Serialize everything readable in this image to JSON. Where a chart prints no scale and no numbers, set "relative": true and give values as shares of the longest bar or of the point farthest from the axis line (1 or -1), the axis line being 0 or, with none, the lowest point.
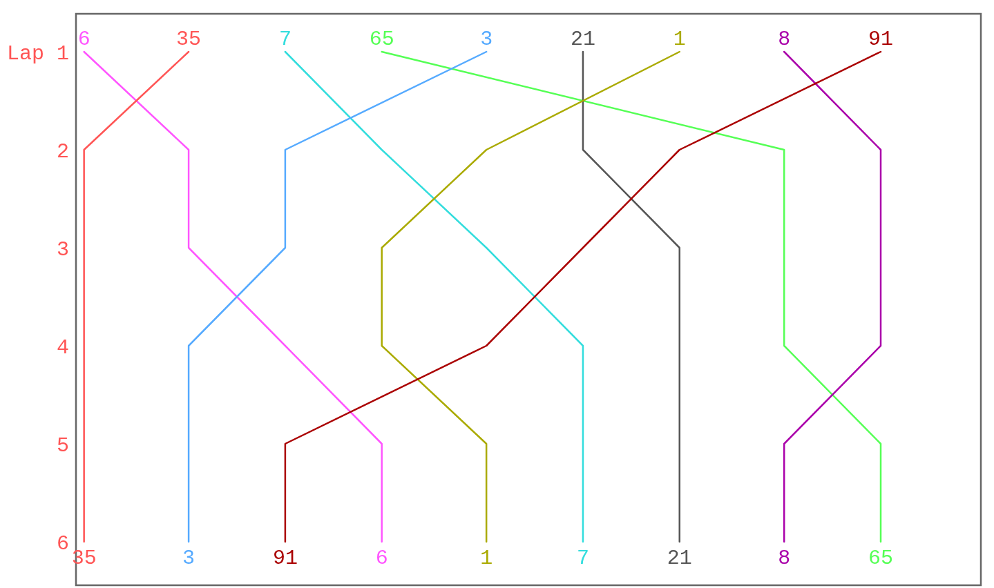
{
  "chart_data": {
    "type": "line",
    "orientation": "horizontal",
    "relative": true,
    "categories": [
      "Lap 1",
      "2",
      "3",
      "4",
      "5",
      "6"
    ],
    "grid": false,
    "line_style": "solid",
    "series": [
      {
        "name": "6",
        "color": "#ff55ff",
        "values": [
          0.01,
          0.14,
          0.14,
          0.26,
          0.38,
          0.38
        ]
      },
      {
        "name": "35",
        "color": "#ff5555",
        "values": [
          0.14,
          0.01,
          0.01,
          0.01,
          0.01,
          0.01
        ]
      },
      {
        "name": "7",
        "color": "#33dddd",
        "values": [
          0.26,
          0.38,
          0.51,
          0.63,
          0.63,
          0.63
        ]
      },
      {
        "name": "65",
        "color": "#55ff55",
        "values": [
          0.38,
          0.88,
          0.88,
          0.88,
          1,
          1
        ]
      },
      {
        "name": "3",
        "color": "#55aaff",
        "values": [
          0.51,
          0.26,
          0.26,
          0.14,
          0.14,
          0.14
        ]
      },
      {
        "name": "21",
        "color": "#555555",
        "values": [
          0.63,
          0.63,
          0.75,
          0.75,
          0.75,
          0.75
        ]
      },
      {
        "name": "1",
        "color": "#aaaa00",
        "values": [
          0.75,
          0.51,
          0.38,
          0.38,
          0.51,
          0.51
        ]
      },
      {
        "name": "8",
        "color": "#aa00aa",
        "values": [
          0.88,
          1,
          1,
          1,
          0.88,
          0.88
        ]
      },
      {
        "name": "91",
        "color": "#aa0000",
        "values": [
          1,
          0.75,
          0.63,
          0.51,
          0.26,
          0.26
        ]
      }
    ]
  }
}
